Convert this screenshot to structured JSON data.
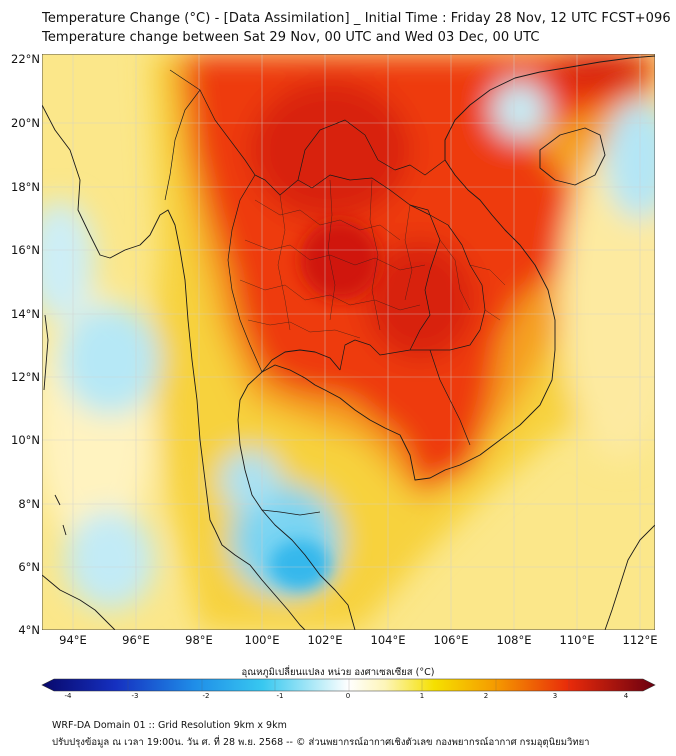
{
  "header": {
    "title_line1": "Temperature Change (°C) - [Data Assimilation] _ Initial Time : Friday 28 Nov, 12 UTC FCST+096",
    "title_line2": "Temperature change between Sat 29 Nov, 00 UTC and Wed 03 Dec, 00 UTC"
  },
  "map": {
    "lat_labels": [
      "22°N",
      "20°N",
      "18°N",
      "16°N",
      "14°N",
      "12°N",
      "10°N",
      "8°N",
      "6°N",
      "4°N"
    ],
    "lon_labels": [
      "94°E",
      "96°E",
      "98°E",
      "100°E",
      "102°E",
      "104°E",
      "106°E",
      "108°E",
      "110°E",
      "112°E"
    ]
  },
  "colorbar": {
    "title": "อุณหภูมิเปลี่ยนแปลง หน่วย องศาเซลเซียส (°C)",
    "ticks": [
      "-4",
      "-3",
      "-2",
      "-1",
      "0",
      "1",
      "2",
      "3",
      "4"
    ],
    "colors": {
      "min": "#08086b",
      "mid_neg": "#38c8f0",
      "zero": "#ffffff",
      "mid_pos": "#f5e000",
      "max": "#6b0010"
    }
  },
  "footer": {
    "line1": "WRF-DA Domain 01 :: Grid Resolution 9km x 9km",
    "line2": "ปรับปรุงข้อมูล ณ เวลา 19:00น. วัน ศ. ที่ 28 พ.ย. 2568 -- © ส่วนพยากรณ์อากาศเชิงตัวเลข กองพยากรณ์อากาศ กรมอุตุนิยมวิทยา"
  }
}
